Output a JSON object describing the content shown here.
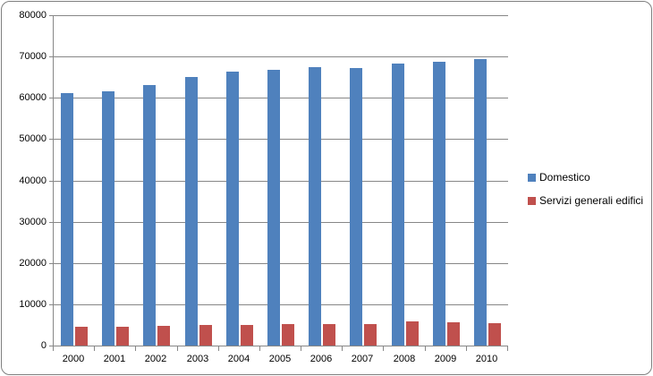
{
  "chart_data": {
    "type": "bar",
    "title": "",
    "xlabel": "",
    "ylabel": "",
    "categories": [
      "2000",
      "2001",
      "2002",
      "2003",
      "2004",
      "2005",
      "2006",
      "2007",
      "2008",
      "2009",
      "2010"
    ],
    "series": [
      {
        "name": "Domestico",
        "color": "#4f81bd",
        "values": [
          61100,
          61500,
          63000,
          65000,
          66400,
          66700,
          67500,
          67100,
          68300,
          68700,
          69400
        ]
      },
      {
        "name": "Servizi generali edifici",
        "color": "#c0504d",
        "values": [
          4500,
          4500,
          4700,
          4900,
          4900,
          5100,
          5100,
          5200,
          5800,
          5600,
          5500
        ]
      }
    ],
    "ylim": [
      0,
      80000
    ],
    "ytick_step": 10000,
    "ytick_labels": [
      "0",
      "10000",
      "20000",
      "30000",
      "40000",
      "50000",
      "60000",
      "70000",
      "80000"
    ],
    "grid": true,
    "legend_position": "right"
  },
  "colors": {
    "plot_background": "#ffffff",
    "gridline": "#878787",
    "axis": "#878787",
    "frame_border": "#7f7f7f",
    "text": "#000000"
  }
}
